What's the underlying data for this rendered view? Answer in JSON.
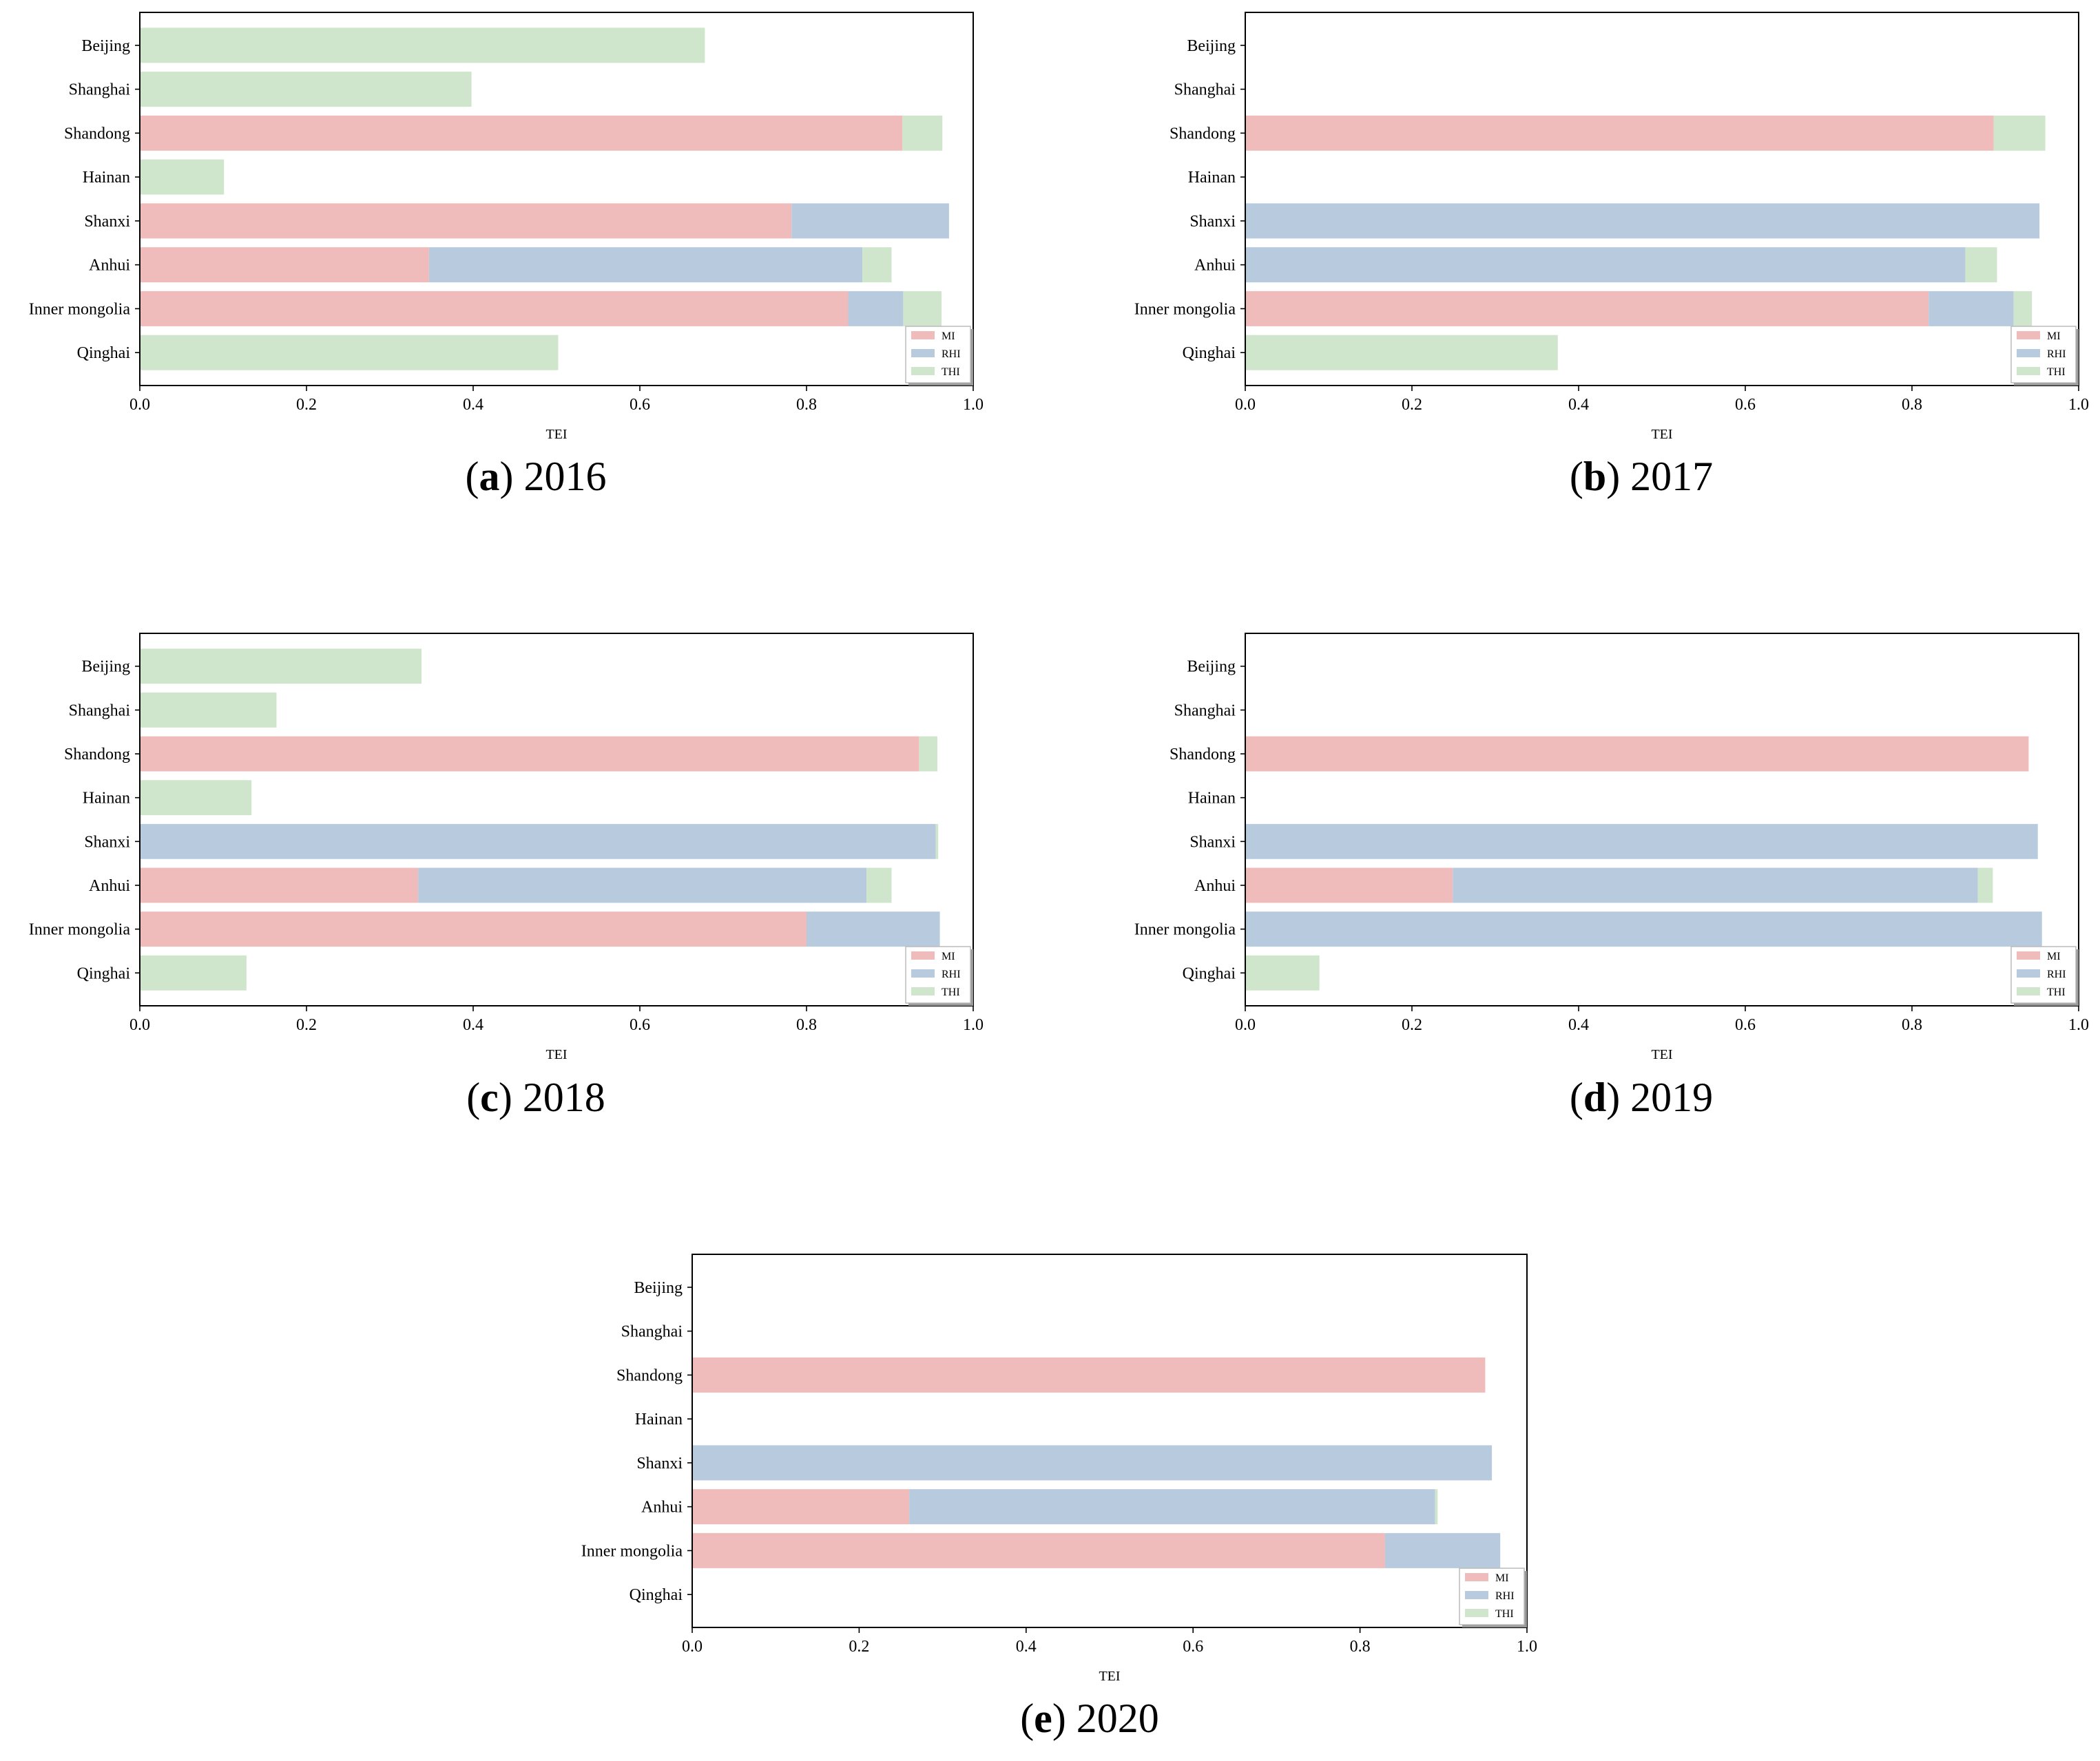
{
  "colors": {
    "MI": "#f0bbbb",
    "RHI": "#b8cbde",
    "THI": "#d0e6cc",
    "axis": "#000000"
  },
  "chart_data": [
    {
      "type": "bar",
      "orientation": "horizontal",
      "stacked": true,
      "caption_label": "a",
      "caption_year": "2016",
      "categories": [
        "Beijing",
        "Shanghai",
        "Shandong",
        "Hainan",
        "Shanxi",
        "Anhui",
        "Inner mongolia",
        "Qinghai"
      ],
      "series": [
        {
          "name": "MI",
          "values": [
            0,
            0,
            0.915,
            0,
            0.782,
            0.347,
            0.85,
            0
          ]
        },
        {
          "name": "RHI",
          "values": [
            0,
            0,
            0,
            0,
            0.189,
            0.52,
            0.066,
            0
          ]
        },
        {
          "name": "THI",
          "values": [
            0.678,
            0.398,
            0.048,
            0.101,
            0,
            0.035,
            0.046,
            0.502
          ]
        }
      ],
      "xlabel": "TEI",
      "xlim": [
        0.0,
        1.0
      ],
      "xticks": [
        "0.0",
        "0.2",
        "0.4",
        "0.6",
        "0.8",
        "1.0"
      ],
      "legend": "lower-right"
    },
    {
      "type": "bar",
      "orientation": "horizontal",
      "stacked": true,
      "caption_label": "b",
      "caption_year": "2017",
      "categories": [
        "Beijing",
        "Shanghai",
        "Shandong",
        "Hainan",
        "Shanxi",
        "Anhui",
        "Inner mongolia",
        "Qinghai"
      ],
      "series": [
        {
          "name": "MI",
          "values": [
            0,
            0,
            0.898,
            0,
            0,
            0,
            0.82,
            0
          ]
        },
        {
          "name": "RHI",
          "values": [
            0,
            0,
            0,
            0,
            0.953,
            0.864,
            0.102,
            0
          ]
        },
        {
          "name": "THI",
          "values": [
            0,
            0,
            0.062,
            0,
            0,
            0.038,
            0.022,
            0.375
          ]
        }
      ],
      "xlabel": "TEI",
      "xlim": [
        0.0,
        1.0
      ],
      "xticks": [
        "0.0",
        "0.2",
        "0.4",
        "0.6",
        "0.8",
        "1.0"
      ],
      "legend": "lower-right"
    },
    {
      "type": "bar",
      "orientation": "horizontal",
      "stacked": true,
      "caption_label": "c",
      "caption_year": "2018",
      "categories": [
        "Beijing",
        "Shanghai",
        "Shandong",
        "Hainan",
        "Shanxi",
        "Anhui",
        "Inner mongolia",
        "Qinghai"
      ],
      "series": [
        {
          "name": "MI",
          "values": [
            0,
            0,
            0.935,
            0,
            0,
            0.334,
            0.8,
            0
          ]
        },
        {
          "name": "RHI",
          "values": [
            0,
            0,
            0,
            0,
            0.955,
            0.538,
            0.16,
            0
          ]
        },
        {
          "name": "THI",
          "values": [
            0.338,
            0.164,
            0.022,
            0.134,
            0.003,
            0.03,
            0,
            0.128
          ]
        }
      ],
      "xlabel": "TEI",
      "xlim": [
        0.0,
        1.0
      ],
      "xticks": [
        "0.0",
        "0.2",
        "0.4",
        "0.6",
        "0.8",
        "1.0"
      ],
      "legend": "lower-right"
    },
    {
      "type": "bar",
      "orientation": "horizontal",
      "stacked": true,
      "caption_label": "d",
      "caption_year": "2019",
      "categories": [
        "Beijing",
        "Shanghai",
        "Shandong",
        "Hainan",
        "Shanxi",
        "Anhui",
        "Inner mongolia",
        "Qinghai"
      ],
      "series": [
        {
          "name": "MI",
          "values": [
            0,
            0,
            0.94,
            0,
            0,
            0.249,
            0,
            0
          ]
        },
        {
          "name": "RHI",
          "values": [
            0,
            0,
            0,
            0,
            0.951,
            0.63,
            0.956,
            0
          ]
        },
        {
          "name": "THI",
          "values": [
            0,
            0,
            0,
            0,
            0,
            0.018,
            0,
            0.089
          ]
        }
      ],
      "xlabel": "TEI",
      "xlim": [
        0.0,
        1.0
      ],
      "xticks": [
        "0.0",
        "0.2",
        "0.4",
        "0.6",
        "0.8",
        "1.0"
      ],
      "legend": "lower-right"
    },
    {
      "type": "bar",
      "orientation": "horizontal",
      "stacked": true,
      "caption_label": "e",
      "caption_year": "2020",
      "categories": [
        "Beijing",
        "Shanghai",
        "Shandong",
        "Hainan",
        "Shanxi",
        "Anhui",
        "Inner mongolia",
        "Qinghai"
      ],
      "series": [
        {
          "name": "MI",
          "values": [
            0,
            0,
            0.95,
            0,
            0,
            0.26,
            0.83,
            0
          ]
        },
        {
          "name": "RHI",
          "values": [
            0,
            0,
            0,
            0,
            0.958,
            0.63,
            0.138,
            0
          ]
        },
        {
          "name": "THI",
          "values": [
            0,
            0,
            0,
            0,
            0,
            0.003,
            0,
            0
          ]
        }
      ],
      "xlabel": "TEI",
      "xlim": [
        0.0,
        1.0
      ],
      "xticks": [
        "0.0",
        "0.2",
        "0.4",
        "0.6",
        "0.8",
        "1.0"
      ],
      "legend": "lower-right"
    }
  ]
}
